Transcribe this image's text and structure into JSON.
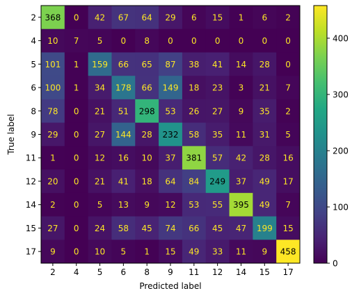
{
  "chart_data": {
    "type": "heatmap",
    "title": "",
    "xlabel": "Predicted label",
    "ylabel": "True label",
    "x_categories": [
      "2",
      "4",
      "5",
      "6",
      "8",
      "9",
      "11",
      "12",
      "14",
      "15",
      "17"
    ],
    "y_categories": [
      "2",
      "4",
      "5",
      "6",
      "8",
      "9",
      "11",
      "12",
      "14",
      "15",
      "17"
    ],
    "matrix": [
      [
        368,
        0,
        42,
        67,
        64,
        29,
        6,
        15,
        1,
        6,
        2
      ],
      [
        10,
        7,
        5,
        0,
        8,
        0,
        0,
        0,
        0,
        0,
        0
      ],
      [
        101,
        1,
        159,
        66,
        65,
        87,
        38,
        41,
        14,
        28,
        0
      ],
      [
        100,
        1,
        34,
        178,
        66,
        149,
        18,
        23,
        3,
        21,
        7
      ],
      [
        78,
        0,
        21,
        51,
        298,
        53,
        26,
        27,
        9,
        35,
        2
      ],
      [
        29,
        0,
        27,
        144,
        28,
        232,
        58,
        35,
        11,
        31,
        5
      ],
      [
        1,
        0,
        12,
        16,
        10,
        37,
        381,
        57,
        42,
        28,
        16
      ],
      [
        20,
        0,
        21,
        41,
        18,
        64,
        84,
        249,
        37,
        49,
        17
      ],
      [
        2,
        0,
        5,
        13,
        9,
        12,
        53,
        55,
        395,
        49,
        7
      ],
      [
        27,
        0,
        24,
        58,
        45,
        74,
        66,
        45,
        47,
        199,
        15
      ],
      [
        9,
        0,
        10,
        5,
        1,
        15,
        49,
        33,
        11,
        9,
        458
      ]
    ],
    "colormap": "viridis",
    "colorbar": {
      "min": 0,
      "max": 458,
      "ticks": [
        0,
        100,
        200,
        300,
        400
      ]
    },
    "label_colors": {
      "on_dark": "#fde725",
      "on_light": "#000000"
    },
    "grid": false
  }
}
